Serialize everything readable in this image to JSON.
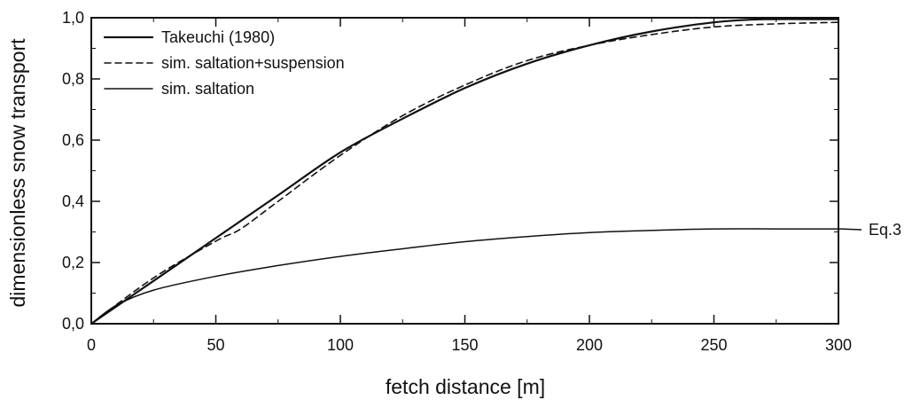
{
  "chart_data": {
    "type": "line",
    "title": "",
    "xlabel": "fetch distance [m]",
    "ylabel": "dimensionless snow transport",
    "xlim": [
      0,
      300
    ],
    "ylim": [
      0,
      1.0
    ],
    "xticks": [
      0,
      50,
      100,
      150,
      200,
      250,
      300
    ],
    "xtick_labels": [
      "0",
      "50",
      "100",
      "150",
      "200",
      "250",
      "300"
    ],
    "yticks": [
      0,
      0.2,
      0.4,
      0.6,
      0.8,
      1.0
    ],
    "ytick_labels": [
      "0,0",
      "0,2",
      "0,4",
      "0,6",
      "0,8",
      "1,0"
    ],
    "grid": false,
    "legend_position": "top-left",
    "annotation": {
      "text": "Eq.3",
      "x": 300,
      "y": 0.31
    },
    "series": [
      {
        "name": "Takeuchi (1980)",
        "style": "solid",
        "color": "#111111",
        "x": [
          0,
          25,
          50,
          75,
          100,
          125,
          150,
          175,
          200,
          225,
          250,
          270,
          300
        ],
        "y": [
          0,
          0.14,
          0.28,
          0.42,
          0.56,
          0.67,
          0.77,
          0.85,
          0.91,
          0.955,
          0.985,
          0.995,
          0.995
        ]
      },
      {
        "name": "sim. saltation+suspension",
        "style": "dashed",
        "color": "#111111",
        "x": [
          0,
          25,
          50,
          60,
          75,
          100,
          125,
          150,
          175,
          200,
          225,
          250,
          275,
          300
        ],
        "y": [
          0,
          0.15,
          0.27,
          0.31,
          0.4,
          0.55,
          0.68,
          0.78,
          0.86,
          0.91,
          0.945,
          0.97,
          0.98,
          0.985
        ]
      },
      {
        "name": "sim. saltation",
        "style": "solid-thin",
        "color": "#111111",
        "x": [
          0,
          10,
          25,
          50,
          75,
          100,
          125,
          150,
          175,
          200,
          225,
          250,
          275,
          300
        ],
        "y": [
          0,
          0.06,
          0.11,
          0.155,
          0.19,
          0.22,
          0.245,
          0.268,
          0.285,
          0.298,
          0.305,
          0.31,
          0.31,
          0.31
        ]
      }
    ]
  }
}
